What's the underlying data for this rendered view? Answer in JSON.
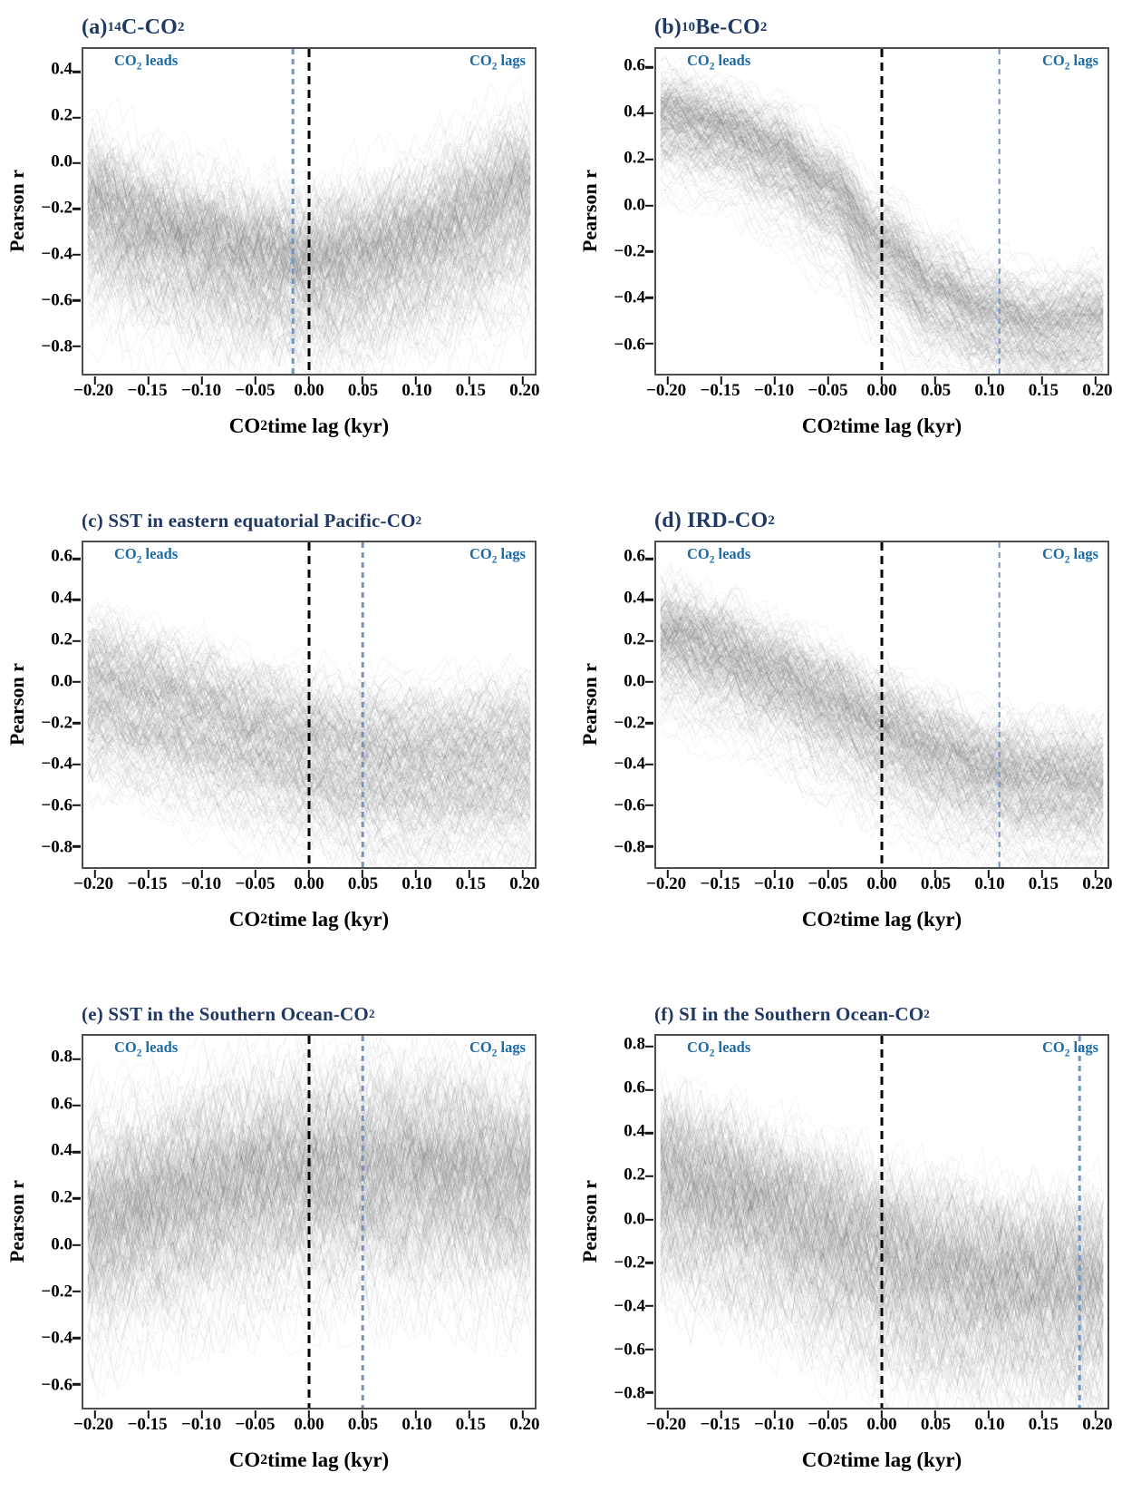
{
  "figure": {
    "description": "Six-panel ensemble lag-correlation figure: Pearson r between CO2 and six proxy records as a function of CO2 time lag, with hundreds of gray ensemble correlation curves per panel, a black dashed reference line at zero lag and a blue dashed line at the lag of peak correlation.",
    "ylabel_segments": [
      {
        "t": "Pearson r"
      }
    ],
    "xlabel_segments": [
      {
        "t": "CO"
      },
      {
        "t": "2",
        "s": "sub"
      },
      {
        "t": " time lag (kyr)"
      }
    ],
    "leads_segments": [
      {
        "t": "CO"
      },
      {
        "t": "2",
        "s": "sub"
      },
      {
        "t": " leads"
      }
    ],
    "lags_segments": [
      {
        "t": "CO"
      },
      {
        "t": "2",
        "s": "sub"
      },
      {
        "t": " lags"
      }
    ]
  },
  "colors": {
    "title_navy": "#1f3864",
    "annotation_blue": "#1b6ca8",
    "ref_line_blue": "#7795ba",
    "ref_line_black": "#000000",
    "ensemble_gray": "#696969",
    "axis_frame_gray": "#4d4d4d",
    "tick_black": "#141414",
    "background": "#ffffff"
  },
  "chart_data": [
    {
      "id": "a",
      "type": "line",
      "title_segments": [
        {
          "t": "(a) "
        },
        {
          "t": "14",
          "s": "sup"
        },
        {
          "t": "C-CO"
        },
        {
          "t": "2",
          "s": "sub"
        }
      ],
      "x_ticks": [
        -0.2,
        -0.15,
        -0.1,
        -0.05,
        0.0,
        0.05,
        0.1,
        0.15,
        0.2
      ],
      "y_ticks": [
        0.4,
        0.2,
        0.0,
        -0.2,
        -0.4,
        -0.6,
        -0.8
      ],
      "xlim": [
        -0.211,
        0.211
      ],
      "ylim": [
        -0.92,
        0.5
      ],
      "zero_line_x": 0.0,
      "blue_line_x": -0.015,
      "ensemble": {
        "n_lines": 280,
        "seed": 11,
        "segments": 88,
        "x_knots": [
          -0.2,
          -0.15,
          -0.1,
          -0.05,
          0.0,
          0.05,
          0.1,
          0.15,
          0.2
        ],
        "mean": [
          -0.22,
          -0.31,
          -0.38,
          -0.44,
          -0.47,
          -0.44,
          -0.37,
          -0.27,
          -0.16
        ],
        "spread": [
          0.16,
          0.16,
          0.16,
          0.16,
          0.16,
          0.17,
          0.17,
          0.18,
          0.19
        ],
        "jitter": 0.1,
        "lower_tail_skew": 1.35
      }
    },
    {
      "id": "b",
      "type": "line",
      "title_segments": [
        {
          "t": "(b) "
        },
        {
          "t": "10",
          "s": "sup"
        },
        {
          "t": "Be-CO"
        },
        {
          "t": "2",
          "s": "sub"
        }
      ],
      "x_ticks": [
        -0.2,
        -0.15,
        -0.1,
        -0.05,
        0.0,
        0.05,
        0.1,
        0.15,
        0.2
      ],
      "y_ticks": [
        0.6,
        0.4,
        0.2,
        0.0,
        -0.2,
        -0.4,
        -0.6
      ],
      "xlim": [
        -0.211,
        0.211
      ],
      "ylim": [
        -0.73,
        0.68
      ],
      "zero_line_x": 0.0,
      "blue_line_x": 0.11,
      "ensemble": {
        "n_lines": 280,
        "seed": 22,
        "segments": 88,
        "x_knots": [
          -0.2,
          -0.15,
          -0.1,
          -0.05,
          0.0,
          0.05,
          0.1,
          0.15,
          0.2
        ],
        "mean": [
          0.38,
          0.32,
          0.22,
          0.06,
          -0.2,
          -0.38,
          -0.49,
          -0.55,
          -0.52
        ],
        "spread": [
          0.09,
          0.09,
          0.1,
          0.1,
          0.11,
          0.11,
          0.11,
          0.11,
          0.12
        ],
        "jitter": 0.05,
        "lower_tail_skew": 1.5
      }
    },
    {
      "id": "c",
      "type": "line",
      "title_segments": [
        {
          "t": "(c) SST in eastern equatorial Pacific-CO"
        },
        {
          "t": "2",
          "s": "sub"
        }
      ],
      "x_ticks": [
        -0.2,
        -0.15,
        -0.1,
        -0.05,
        0.0,
        0.05,
        0.1,
        0.15,
        0.2
      ],
      "y_ticks": [
        0.6,
        0.4,
        0.2,
        0.0,
        -0.2,
        -0.4,
        -0.6,
        -0.8
      ],
      "xlim": [
        -0.211,
        0.211
      ],
      "ylim": [
        -0.9,
        0.68
      ],
      "zero_line_x": 0.0,
      "blue_line_x": 0.05,
      "ensemble": {
        "n_lines": 280,
        "seed": 33,
        "segments": 88,
        "x_knots": [
          -0.2,
          -0.15,
          -0.1,
          -0.05,
          0.0,
          0.05,
          0.1,
          0.15,
          0.2
        ],
        "mean": [
          -0.03,
          -0.1,
          -0.18,
          -0.26,
          -0.33,
          -0.38,
          -0.4,
          -0.39,
          -0.37
        ],
        "spread": [
          0.15,
          0.15,
          0.15,
          0.15,
          0.15,
          0.16,
          0.16,
          0.16,
          0.17
        ],
        "jitter": 0.08,
        "lower_tail_skew": 1.35
      }
    },
    {
      "id": "d",
      "type": "line",
      "title_segments": [
        {
          "t": "(d) IRD-CO"
        },
        {
          "t": "2",
          "s": "sub"
        }
      ],
      "x_ticks": [
        -0.2,
        -0.15,
        -0.1,
        -0.05,
        0.0,
        0.05,
        0.1,
        0.15,
        0.2
      ],
      "y_ticks": [
        0.6,
        0.4,
        0.2,
        0.0,
        -0.2,
        -0.4,
        -0.6,
        -0.8
      ],
      "xlim": [
        -0.211,
        0.211
      ],
      "ylim": [
        -0.9,
        0.68
      ],
      "zero_line_x": 0.0,
      "blue_line_x": 0.11,
      "ensemble": {
        "n_lines": 280,
        "seed": 44,
        "segments": 88,
        "x_knots": [
          -0.2,
          -0.15,
          -0.1,
          -0.05,
          0.0,
          0.05,
          0.1,
          0.15,
          0.2
        ],
        "mean": [
          0.22,
          0.14,
          0.03,
          -0.1,
          -0.23,
          -0.35,
          -0.44,
          -0.49,
          -0.5
        ],
        "spread": [
          0.12,
          0.12,
          0.12,
          0.13,
          0.13,
          0.13,
          0.13,
          0.14,
          0.14
        ],
        "jitter": 0.07,
        "lower_tail_skew": 1.45
      }
    },
    {
      "id": "e",
      "type": "line",
      "title_segments": [
        {
          "t": "(e) SST  in the Southern Ocean-CO"
        },
        {
          "t": "2",
          "s": "sub"
        }
      ],
      "x_ticks": [
        -0.2,
        -0.15,
        -0.1,
        -0.05,
        0.0,
        0.05,
        0.1,
        0.15,
        0.2
      ],
      "y_ticks": [
        0.8,
        0.6,
        0.4,
        0.2,
        0.0,
        -0.2,
        -0.4,
        -0.6
      ],
      "xlim": [
        -0.211,
        0.211
      ],
      "ylim": [
        -0.7,
        0.9
      ],
      "zero_line_x": 0.0,
      "blue_line_x": 0.05,
      "ensemble": {
        "n_lines": 280,
        "seed": 55,
        "segments": 88,
        "x_knots": [
          -0.2,
          -0.15,
          -0.1,
          -0.05,
          0.0,
          0.05,
          0.1,
          0.15,
          0.2
        ],
        "mean": [
          0.1,
          0.17,
          0.24,
          0.29,
          0.32,
          0.33,
          0.33,
          0.31,
          0.28
        ],
        "spread": [
          0.2,
          0.2,
          0.21,
          0.21,
          0.21,
          0.21,
          0.21,
          0.21,
          0.21
        ],
        "jitter": 0.13,
        "lower_tail_skew": 1.25
      }
    },
    {
      "id": "f",
      "type": "line",
      "title_segments": [
        {
          "t": "(f) SI in the Southern Ocean-CO"
        },
        {
          "t": "2",
          "s": "sub"
        }
      ],
      "x_ticks": [
        -0.2,
        -0.15,
        -0.1,
        -0.05,
        0.0,
        0.05,
        0.1,
        0.15,
        0.2
      ],
      "y_ticks": [
        0.8,
        0.6,
        0.4,
        0.2,
        0.0,
        -0.2,
        -0.4,
        -0.6,
        -0.8
      ],
      "xlim": [
        -0.211,
        0.211
      ],
      "ylim": [
        -0.87,
        0.85
      ],
      "zero_line_x": 0.0,
      "blue_line_x": 0.185,
      "ensemble": {
        "n_lines": 280,
        "seed": 66,
        "segments": 88,
        "x_knots": [
          -0.2,
          -0.15,
          -0.1,
          -0.05,
          0.0,
          0.05,
          0.1,
          0.15,
          0.2
        ],
        "mean": [
          0.17,
          0.1,
          0.01,
          -0.09,
          -0.19,
          -0.26,
          -0.3,
          -0.32,
          -0.33
        ],
        "spread": [
          0.18,
          0.18,
          0.18,
          0.19,
          0.19,
          0.19,
          0.19,
          0.19,
          0.2
        ],
        "jitter": 0.13,
        "lower_tail_skew": 1.3
      }
    }
  ]
}
